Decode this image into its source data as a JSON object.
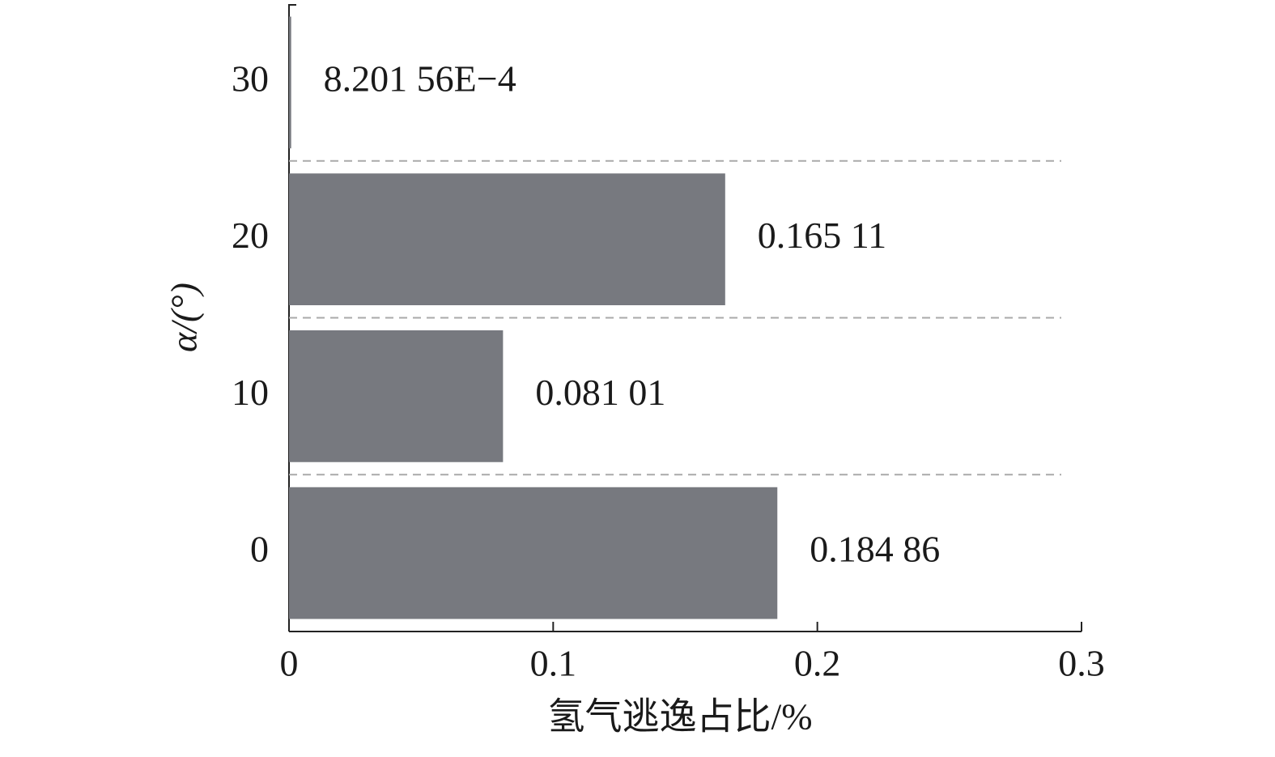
{
  "chart_data": {
    "type": "bar",
    "orientation": "horizontal",
    "x_label": "氢气逃逸占比/%",
    "y_label": "α/(°)",
    "categories": [
      "0",
      "10",
      "20",
      "30"
    ],
    "values": [
      0.18486,
      0.08101,
      0.16511,
      0.000820156
    ],
    "value_labels": [
      "0.184 86",
      "0.081 01",
      "0.165 11",
      "8.201 56E−4"
    ],
    "color": "#77797f",
    "xlim": [
      0,
      0.3
    ],
    "xticks": [
      0,
      0.1,
      0.2,
      0.3
    ]
  }
}
